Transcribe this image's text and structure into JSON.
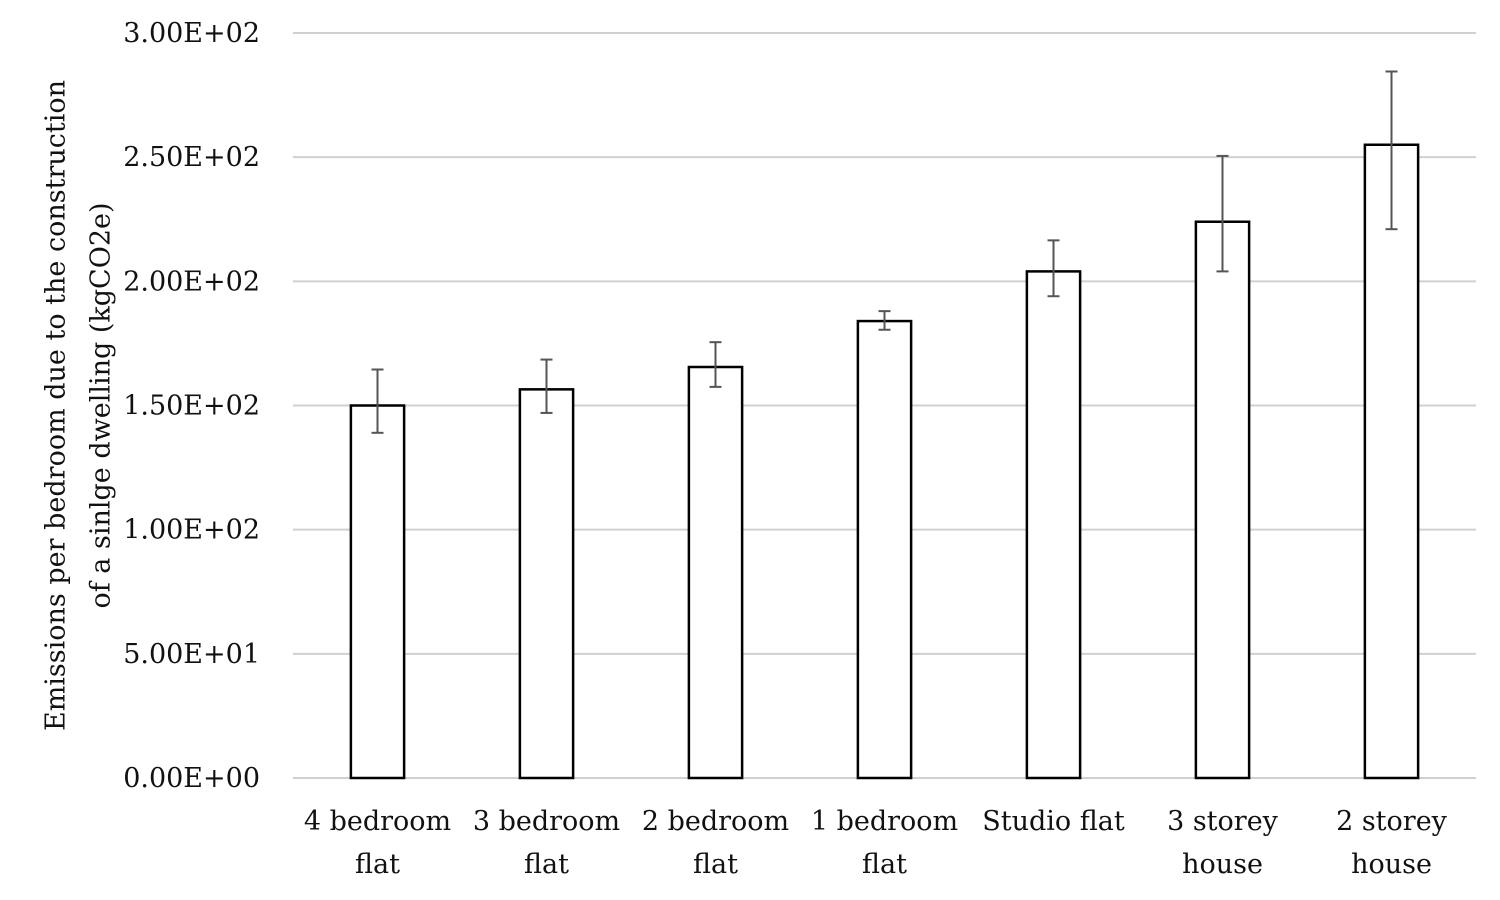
{
  "chart_data": {
    "type": "bar",
    "title": "",
    "xlabel": "",
    "ylabel_lines": [
      "Emissions per bedroom due to the construction",
      "of a sinlge dwelling (kgCO2e)"
    ],
    "categories": [
      [
        "4 bedroom",
        "flat"
      ],
      [
        "3 bedroom",
        "flat"
      ],
      [
        "2 bedroom",
        "flat"
      ],
      [
        "1 bedroom",
        "flat"
      ],
      [
        "Studio flat"
      ],
      [
        "3 storey",
        "house"
      ],
      [
        "2 storey",
        "house"
      ]
    ],
    "values": [
      150,
      156.5,
      165.5,
      184,
      204,
      224,
      255
    ],
    "error_bars": [
      {
        "low": 139,
        "high": 164.5
      },
      {
        "low": 147,
        "high": 168.5
      },
      {
        "low": 157.5,
        "high": 175.5
      },
      {
        "low": 180.5,
        "high": 188
      },
      {
        "low": 194,
        "high": 216.5
      },
      {
        "low": 204,
        "high": 250.5
      },
      {
        "low": 221,
        "high": 284.5
      }
    ],
    "ylim": [
      0,
      300
    ],
    "yticks": [
      0,
      50,
      100,
      150,
      200,
      250,
      300
    ],
    "ytick_labels": [
      "0.00E+00",
      "5.00E+01",
      "1.00E+02",
      "1.50E+02",
      "2.00E+02",
      "2.50E+02",
      "3.00E+02"
    ],
    "grid": true,
    "legend": "none",
    "colors": {
      "bar_fill": "#ffffff",
      "bar_edge": "#000000",
      "error_bar": "#555555",
      "grid": "#d0d0d0"
    }
  }
}
